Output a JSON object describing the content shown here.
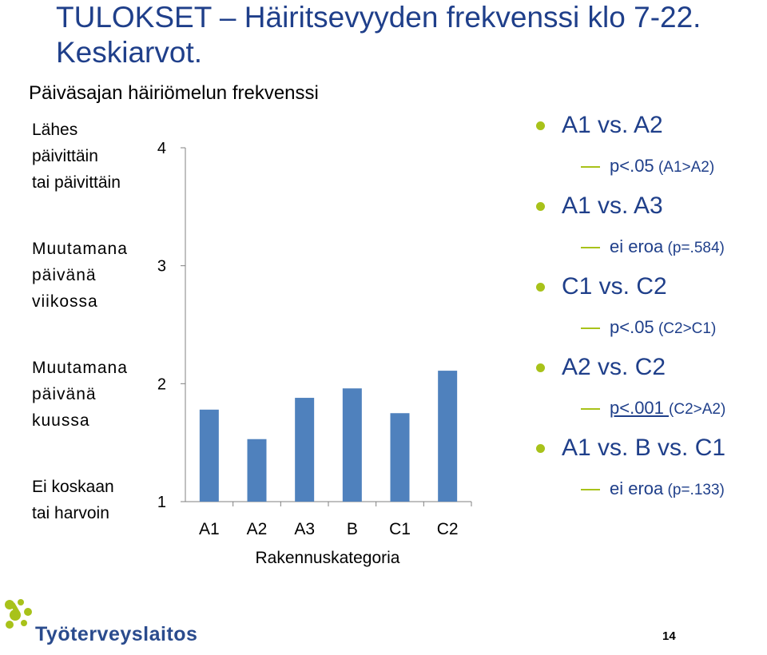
{
  "slide": {
    "title": "TULOKSET – Häiritsevyyden frekvenssi klo 7-22. Keskiarvot.",
    "page_number": "14",
    "logo_text": "Työterveyslaitos"
  },
  "chart_data": {
    "type": "bar",
    "title": "Päiväsajan häiriömelun frekvenssi",
    "xlabel": "Rakennuskategoria",
    "ylabel": "",
    "categories": [
      "A1",
      "A2",
      "A3",
      "B",
      "C1",
      "C2"
    ],
    "values": [
      1.78,
      1.53,
      1.88,
      1.96,
      1.75,
      2.11
    ],
    "ylim": [
      1,
      4
    ],
    "yticks": [
      "1",
      "2",
      "3",
      "4"
    ],
    "y_category_labels": [
      {
        "line1": "Lähes",
        "line2": "päivittäin",
        "line3": "tai päivittäin"
      },
      {
        "line1": "Muutamana",
        "line2": "päivänä",
        "line3": "viikossa"
      },
      {
        "line1": "Muutamana",
        "line2": "päivänä",
        "line3": "kuussa"
      },
      {
        "line1": "Ei koskaan",
        "line2": "tai harvoin",
        "line3": ""
      }
    ],
    "bar_color": "#4f81bd",
    "grid": false,
    "legend": "none"
  },
  "comparisons": [
    {
      "label": "A1 vs. A2",
      "result_main": "p<.05",
      "result_detail": " (A1>A2)"
    },
    {
      "label": "A1 vs. A3",
      "result_main": "ei eroa",
      "result_detail": " (p=.584)"
    },
    {
      "label": "C1 vs. C2",
      "result_main": "p<.05",
      "result_detail": " (C2>C1)"
    },
    {
      "label": "A2 vs. C2",
      "result_main": "p<.001 ",
      "result_detail": "(C2>A2)"
    },
    {
      "label": "A1 vs. B vs. C1",
      "result_main": "ei eroa",
      "result_detail": " (p=.133)"
    }
  ],
  "colors": {
    "title": "#1f3f8a",
    "bullet": "#a8c21a",
    "bar": "#4f81bd",
    "logo": "#2a4b8d",
    "logo_mark": "#a8c21a"
  }
}
